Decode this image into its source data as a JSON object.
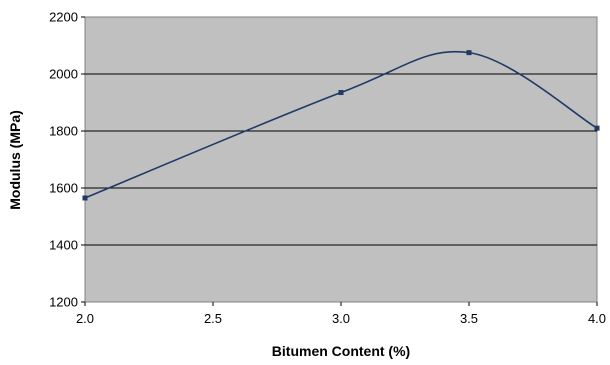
{
  "chart_data": {
    "type": "line",
    "title": "",
    "xlabel": "Bitumen Content (%)",
    "ylabel": "Modulus (MPa)",
    "xlim": [
      2.0,
      4.0
    ],
    "ylim": [
      1200,
      2200
    ],
    "x_ticks": [
      2.0,
      2.5,
      3.0,
      3.5,
      4.0
    ],
    "x_tick_labels": [
      "2.0",
      "2.5",
      "3.0",
      "3.5",
      "4.0"
    ],
    "y_ticks": [
      1200,
      1400,
      1600,
      1800,
      2000,
      2200
    ],
    "y_tick_labels": [
      "1200",
      "1400",
      "1600",
      "1800",
      "2000",
      "2200"
    ],
    "grid": "horizontal",
    "smoothed": true,
    "series": [
      {
        "x": [
          2.0,
          3.0,
          3.5,
          4.0
        ],
        "values": [
          1565,
          1935,
          2075,
          1810
        ]
      }
    ],
    "colors": {
      "plot_background": "#c0c0c0",
      "line": "#1f3a68",
      "gridline": "#000000",
      "frame": "#808080"
    }
  }
}
